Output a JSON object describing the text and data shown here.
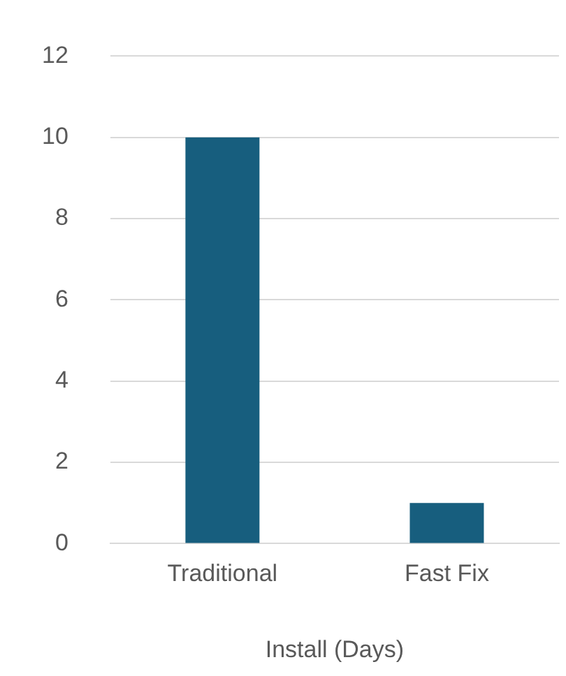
{
  "chart_data": {
    "type": "bar",
    "xlabel": "Install (Days)",
    "categories": [
      "Traditional",
      "Fast Fix"
    ],
    "values": [
      10,
      1
    ],
    "color": "#175e7e",
    "ylim": [
      0,
      12
    ],
    "yticks": [
      0,
      2,
      4,
      6,
      8,
      10,
      12
    ],
    "grid": "y",
    "legend": false
  }
}
